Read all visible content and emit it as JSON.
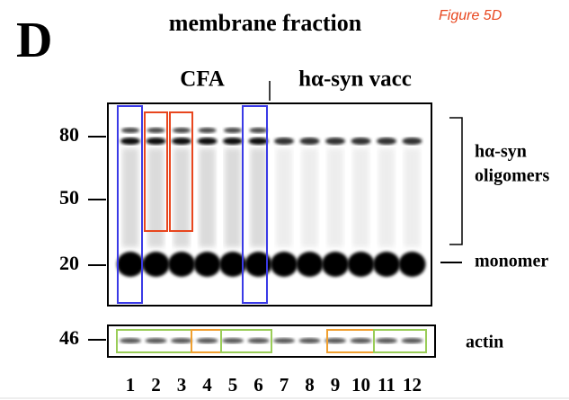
{
  "panel_letter": "D",
  "title": "membrane fraction",
  "figure_label": "Figure 5D",
  "groups": [
    "CFA",
    "hα-syn vacc"
  ],
  "markers": [
    "80",
    "50",
    "20"
  ],
  "actin_marker": "46",
  "right_labels": {
    "oligomer_line1": "hα-syn",
    "oligomer_line2": "oligomers",
    "monomer": "monomer",
    "actin": "actin"
  },
  "lanes": [
    "1",
    "2",
    "3",
    "4",
    "5",
    "6",
    "7",
    "8",
    "9",
    "10",
    "11",
    "12"
  ]
}
